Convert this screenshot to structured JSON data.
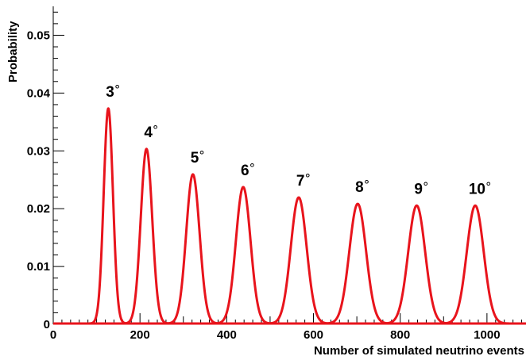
{
  "chart_data": {
    "type": "line",
    "title": "",
    "xlabel": "Number of simulated neutrino events",
    "ylabel": "Probability",
    "xlim": [
      0,
      1090
    ],
    "ylim": [
      0,
      0.055
    ],
    "x_ticks": [
      {
        "value": 0,
        "label": "0"
      },
      {
        "value": 200,
        "label": "200"
      },
      {
        "value": 400,
        "label": "400"
      },
      {
        "value": 600,
        "label": "600"
      },
      {
        "value": 800,
        "label": "800"
      },
      {
        "value": 1000,
        "label": "1000"
      }
    ],
    "y_ticks": [
      {
        "value": 0,
        "label": "0"
      },
      {
        "value": 0.01,
        "label": "0.01"
      },
      {
        "value": 0.02,
        "label": "0.02"
      },
      {
        "value": 0.03,
        "label": "0.03"
      },
      {
        "value": 0.04,
        "label": "0.04"
      },
      {
        "value": 0.05,
        "label": "0.05"
      }
    ],
    "line_color": "#e8141c",
    "grid": false,
    "legend": "none",
    "peaks": [
      {
        "label": "3",
        "mean": 127,
        "height": 0.0372,
        "sigma": 10.7
      },
      {
        "label": "4",
        "mean": 215,
        "height": 0.0302,
        "sigma": 13.2
      },
      {
        "label": "5",
        "mean": 322,
        "height": 0.0258,
        "sigma": 15.5
      },
      {
        "label": "6",
        "mean": 438,
        "height": 0.0236,
        "sigma": 16.9
      },
      {
        "label": "7",
        "mean": 566,
        "height": 0.0218,
        "sigma": 18.3
      },
      {
        "label": "8",
        "mean": 702,
        "height": 0.0207,
        "sigma": 19.3
      },
      {
        "label": "9",
        "mean": 838,
        "height": 0.0204,
        "sigma": 19.6
      },
      {
        "label": "10",
        "mean": 973,
        "height": 0.0204,
        "sigma": 19.6
      }
    ],
    "degree_symbol": "°"
  }
}
